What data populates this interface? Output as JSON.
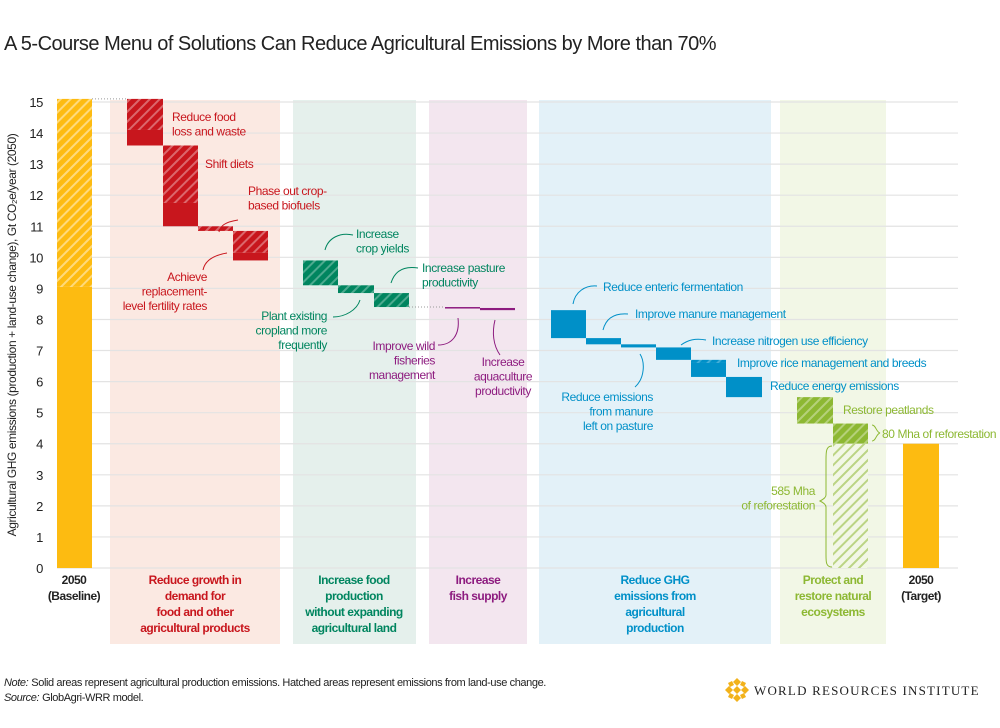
{
  "title": "A 5-Course Menu of Solutions Can Reduce Agricultural Emissions by More than 70%",
  "note_label": "Note:",
  "note_text": "Solid areas represent agricultural production emissions. Hatched areas represent emissions from land-use change.",
  "source_label": "Source:",
  "source_text": "GlobAgri-WRR model.",
  "logo_text": "WORLD RESOURCES INSTITUTE",
  "colors": {
    "baseline": "#FDBB11",
    "demand": "#C8161D",
    "food_production": "#00855F",
    "fish": "#8D1B7F",
    "ghg": "#0090C8",
    "ecosystems": "#8DB833",
    "demand_band": "#FBE9E2",
    "food_production_band": "#E5F0EC",
    "fish_band": "#F3E6EF",
    "ghg_band": "#E3F1F8",
    "ecosystems_band": "#F2F7E6",
    "grid": "#E3E3E3"
  },
  "chart_data": {
    "type": "waterfall",
    "title": "A 5-Course Menu of Solutions Can Reduce Agricultural Emissions by More than 70%",
    "ylabel": "Agricultural GHG emissions (production + land-use change), Gt CO₂e/year (2050)",
    "ylim": [
      0,
      15
    ],
    "yticks": [
      "0",
      "1",
      "2",
      "3",
      "4",
      "5",
      "6",
      "7",
      "8",
      "9",
      "10",
      "11",
      "12",
      "13",
      "14",
      "15"
    ],
    "grid": true,
    "legend_note": "Solid = agricultural production emissions; hatched = land-use change emissions",
    "categories": [
      {
        "id": "baseline",
        "label": [
          "2050",
          "(Baseline)"
        ]
      },
      {
        "id": "demand",
        "label": [
          "Reduce growth in",
          "demand for",
          "food and other",
          "agricultural products"
        ]
      },
      {
        "id": "food_production",
        "label": [
          "Increase food",
          "production",
          "without expanding",
          "agricultural land"
        ]
      },
      {
        "id": "fish",
        "label": [
          "Increase",
          "fish supply"
        ]
      },
      {
        "id": "ghg",
        "label": [
          "Reduce GHG",
          "emissions from",
          "agricultural",
          "production"
        ]
      },
      {
        "id": "ecosystems",
        "label": [
          "Protect and",
          "restore natural",
          "ecosystems"
        ]
      },
      {
        "id": "target",
        "label": [
          "2050",
          "(Target)"
        ]
      }
    ],
    "steps": [
      {
        "category": "baseline",
        "label": [],
        "top": 15.1,
        "bottom": 0,
        "production": 9.05,
        "land_use_change": 6.05
      },
      {
        "category": "demand",
        "label": [
          "Reduce food",
          "loss and waste"
        ],
        "top": 15.1,
        "bottom": 13.6,
        "production": 0.5,
        "land_use_change": 1.0
      },
      {
        "category": "demand",
        "label": [
          "Shift diets"
        ],
        "top": 13.6,
        "bottom": 11.0,
        "production": 0.75,
        "land_use_change": 1.85
      },
      {
        "category": "demand",
        "label": [
          "Phase out crop-",
          "based biofuels"
        ],
        "top": 11.0,
        "bottom": 10.85,
        "production": 0,
        "land_use_change": 0.15
      },
      {
        "category": "demand",
        "label": [
          "Achieve",
          "replacement-",
          "level fertility rates"
        ],
        "top": 10.85,
        "bottom": 9.9,
        "production": 0.25,
        "land_use_change": 0.7
      },
      {
        "category": "food_production",
        "label": [
          "Increase",
          "crop yields"
        ],
        "top": 9.9,
        "bottom": 9.1,
        "production": 0,
        "land_use_change": 0.8
      },
      {
        "category": "food_production",
        "label": [
          "Plant existing",
          "cropland more",
          "frequently"
        ],
        "top": 9.1,
        "bottom": 8.85,
        "production": 0,
        "land_use_change": 0.25
      },
      {
        "category": "food_production",
        "label": [
          "Increase pasture",
          "productivity"
        ],
        "top": 8.85,
        "bottom": 8.4,
        "production": 0,
        "land_use_change": 0.45
      },
      {
        "category": "fish",
        "label": [
          "Improve wild",
          "fisheries",
          "management"
        ],
        "top": 8.4,
        "bottom": 8.37,
        "production": 0.03,
        "land_use_change": 0
      },
      {
        "category": "fish",
        "label": [
          "Increase",
          "aquaculture",
          "productivity"
        ],
        "top": 8.37,
        "bottom": 8.3,
        "production": 0.07,
        "land_use_change": 0
      },
      {
        "category": "ghg",
        "label": [
          "Reduce enteric fermentation"
        ],
        "top": 8.3,
        "bottom": 7.4,
        "production": 0.9,
        "land_use_change": 0
      },
      {
        "category": "ghg",
        "label": [
          "Improve manure management"
        ],
        "top": 7.4,
        "bottom": 7.2,
        "production": 0.2,
        "land_use_change": 0
      },
      {
        "category": "ghg",
        "label": [
          "Reduce emissions",
          "from manure",
          "left on pasture"
        ],
        "top": 7.2,
        "bottom": 7.1,
        "production": 0.1,
        "land_use_change": 0
      },
      {
        "category": "ghg",
        "label": [
          "Increase nitrogen use efficiency"
        ],
        "top": 7.1,
        "bottom": 6.7,
        "production": 0.4,
        "land_use_change": 0
      },
      {
        "category": "ghg",
        "label": [
          "Improve rice management and breeds"
        ],
        "top": 6.7,
        "bottom": 6.15,
        "production": 0.45,
        "land_use_change": 0.1
      },
      {
        "category": "ghg",
        "label": [
          "Reduce energy emissions"
        ],
        "top": 6.15,
        "bottom": 5.5,
        "production": 0.65,
        "land_use_change": 0
      },
      {
        "category": "ecosystems",
        "label": [
          "Restore peatlands"
        ],
        "top": 5.5,
        "bottom": 4.65,
        "production": 0,
        "land_use_change": 0.85
      },
      {
        "category": "ecosystems",
        "label": [
          "80 Mha of reforestation"
        ],
        "top": 4.65,
        "bottom": 4.0,
        "production": 0,
        "land_use_change": 0.65
      },
      {
        "category": "ecosystems",
        "label": [
          "585 Mha",
          "of reforestation"
        ],
        "top": 4.0,
        "bottom": 0,
        "production": 0,
        "land_use_change": 4.0
      },
      {
        "category": "target",
        "label": [],
        "top": 4.0,
        "bottom": 0,
        "production": 4.0,
        "land_use_change": 0
      }
    ]
  }
}
